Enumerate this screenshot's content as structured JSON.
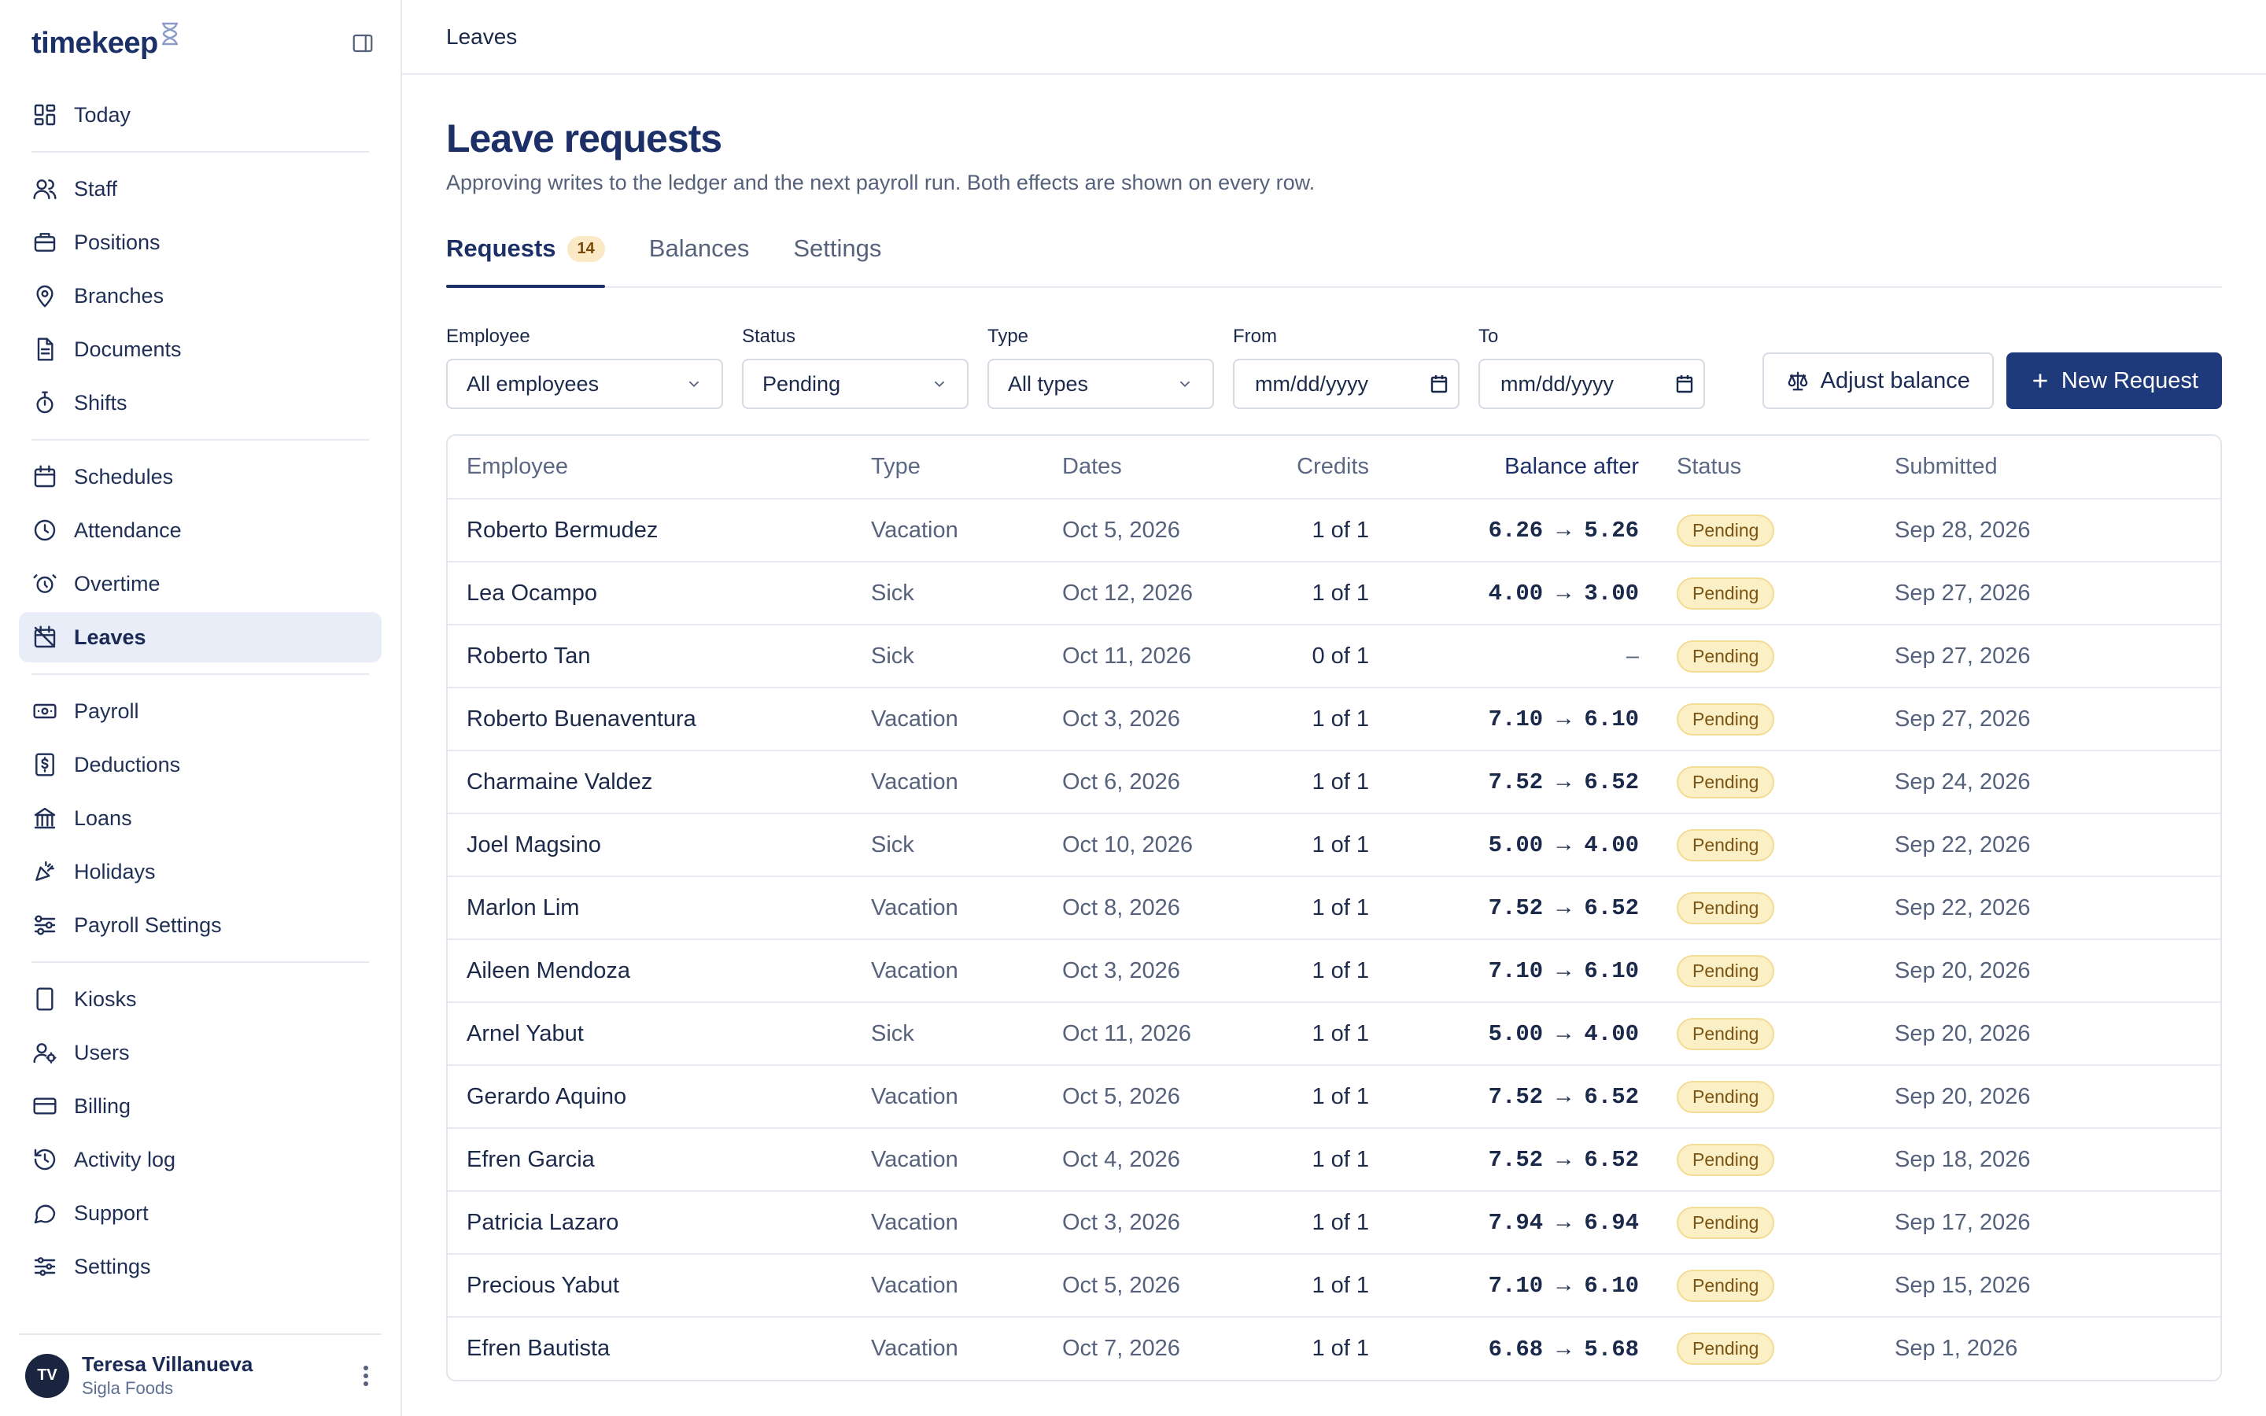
{
  "brand": {
    "name": "timekeep"
  },
  "sidebar": {
    "groups": [
      [
        {
          "label": "Today",
          "icon": "dashboard-icon"
        }
      ],
      [
        {
          "label": "Staff",
          "icon": "users-icon"
        },
        {
          "label": "Positions",
          "icon": "briefcase-icon"
        },
        {
          "label": "Branches",
          "icon": "map-pin-icon"
        },
        {
          "label": "Documents",
          "icon": "document-icon"
        },
        {
          "label": "Shifts",
          "icon": "stopwatch-icon"
        }
      ],
      [
        {
          "label": "Schedules",
          "icon": "calendar-icon"
        },
        {
          "label": "Attendance",
          "icon": "clock-icon"
        },
        {
          "label": "Overtime",
          "icon": "alarm-icon"
        },
        {
          "label": "Leaves",
          "icon": "calendar-off-icon",
          "active": true
        }
      ],
      [
        {
          "label": "Payroll",
          "icon": "banknote-icon"
        },
        {
          "label": "Deductions",
          "icon": "receipt-icon"
        },
        {
          "label": "Loans",
          "icon": "bank-icon"
        },
        {
          "label": "Holidays",
          "icon": "party-icon"
        },
        {
          "label": "Payroll Settings",
          "icon": "sliders-icon"
        }
      ],
      [
        {
          "label": "Kiosks",
          "icon": "tablet-icon"
        },
        {
          "label": "Users",
          "icon": "user-cog-icon"
        },
        {
          "label": "Billing",
          "icon": "credit-card-icon"
        },
        {
          "label": "Activity log",
          "icon": "history-icon"
        },
        {
          "label": "Support",
          "icon": "chat-icon"
        },
        {
          "label": "Settings",
          "icon": "settings-sliders-icon"
        }
      ]
    ]
  },
  "user": {
    "initials": "TV",
    "name": "Teresa Villanueva",
    "org": "Sigla Foods"
  },
  "topbar": {
    "title": "Leaves"
  },
  "page": {
    "title": "Leave requests",
    "subtitle": "Approving writes to the ledger and the next payroll run. Both effects are shown on every row."
  },
  "tabs": [
    {
      "label": "Requests",
      "count": "14",
      "active": true
    },
    {
      "label": "Balances"
    },
    {
      "label": "Settings"
    }
  ],
  "filters": {
    "employee": {
      "label": "Employee",
      "value": "All employees"
    },
    "status": {
      "label": "Status",
      "value": "Pending"
    },
    "type": {
      "label": "Type",
      "value": "All types"
    },
    "from": {
      "label": "From",
      "placeholder": "mm/dd/yyyy"
    },
    "to": {
      "label": "To",
      "placeholder": "mm/dd/yyyy"
    }
  },
  "actions": {
    "adjust_label": "Adjust balance",
    "new_label": "New Request"
  },
  "table": {
    "columns": [
      "Employee",
      "Type",
      "Dates",
      "Credits",
      "Balance after",
      "Status",
      "Submitted"
    ],
    "rows": [
      {
        "employee": "Roberto Bermudez",
        "type": "Vacation",
        "dates": "Oct 5, 2026",
        "credits": "1 of 1",
        "balance": "6.26 → 5.26",
        "status": "Pending",
        "submitted": "Sep 28, 2026"
      },
      {
        "employee": "Lea Ocampo",
        "type": "Sick",
        "dates": "Oct 12, 2026",
        "credits": "1 of 1",
        "balance": "4.00 → 3.00",
        "status": "Pending",
        "submitted": "Sep 27, 2026"
      },
      {
        "employee": "Roberto Tan",
        "type": "Sick",
        "dates": "Oct 11, 2026",
        "credits": "0 of 1",
        "balance": "–",
        "status": "Pending",
        "submitted": "Sep 27, 2026"
      },
      {
        "employee": "Roberto Buenaventura",
        "type": "Vacation",
        "dates": "Oct 3, 2026",
        "credits": "1 of 1",
        "balance": "7.10 → 6.10",
        "status": "Pending",
        "submitted": "Sep 27, 2026"
      },
      {
        "employee": "Charmaine Valdez",
        "type": "Vacation",
        "dates": "Oct 6, 2026",
        "credits": "1 of 1",
        "balance": "7.52 → 6.52",
        "status": "Pending",
        "submitted": "Sep 24, 2026"
      },
      {
        "employee": "Joel Magsino",
        "type": "Sick",
        "dates": "Oct 10, 2026",
        "credits": "1 of 1",
        "balance": "5.00 → 4.00",
        "status": "Pending",
        "submitted": "Sep 22, 2026"
      },
      {
        "employee": "Marlon Lim",
        "type": "Vacation",
        "dates": "Oct 8, 2026",
        "credits": "1 of 1",
        "balance": "7.52 → 6.52",
        "status": "Pending",
        "submitted": "Sep 22, 2026"
      },
      {
        "employee": "Aileen Mendoza",
        "type": "Vacation",
        "dates": "Oct 3, 2026",
        "credits": "1 of 1",
        "balance": "7.10 → 6.10",
        "status": "Pending",
        "submitted": "Sep 20, 2026"
      },
      {
        "employee": "Arnel Yabut",
        "type": "Sick",
        "dates": "Oct 11, 2026",
        "credits": "1 of 1",
        "balance": "5.00 → 4.00",
        "status": "Pending",
        "submitted": "Sep 20, 2026"
      },
      {
        "employee": "Gerardo Aquino",
        "type": "Vacation",
        "dates": "Oct 5, 2026",
        "credits": "1 of 1",
        "balance": "7.52 → 6.52",
        "status": "Pending",
        "submitted": "Sep 20, 2026"
      },
      {
        "employee": "Efren Garcia",
        "type": "Vacation",
        "dates": "Oct 4, 2026",
        "credits": "1 of 1",
        "balance": "7.52 → 6.52",
        "status": "Pending",
        "submitted": "Sep 18, 2026"
      },
      {
        "employee": "Patricia Lazaro",
        "type": "Vacation",
        "dates": "Oct 3, 2026",
        "credits": "1 of 1",
        "balance": "7.94 → 6.94",
        "status": "Pending",
        "submitted": "Sep 17, 2026"
      },
      {
        "employee": "Precious Yabut",
        "type": "Vacation",
        "dates": "Oct 5, 2026",
        "credits": "1 of 1",
        "balance": "7.10 → 6.10",
        "status": "Pending",
        "submitted": "Sep 15, 2026"
      },
      {
        "employee": "Efren Bautista",
        "type": "Vacation",
        "dates": "Oct 7, 2026",
        "credits": "1 of 1",
        "balance": "6.68 → 5.68",
        "status": "Pending",
        "submitted": "Sep 1, 2026"
      }
    ]
  },
  "colors": {
    "brand": "#1c3068",
    "primary_button": "#1e3a7b",
    "pending_bg": "#fbefc6",
    "tab_count_bg": "#fbe8c5",
    "active_nav_bg": "#e9edf7"
  }
}
